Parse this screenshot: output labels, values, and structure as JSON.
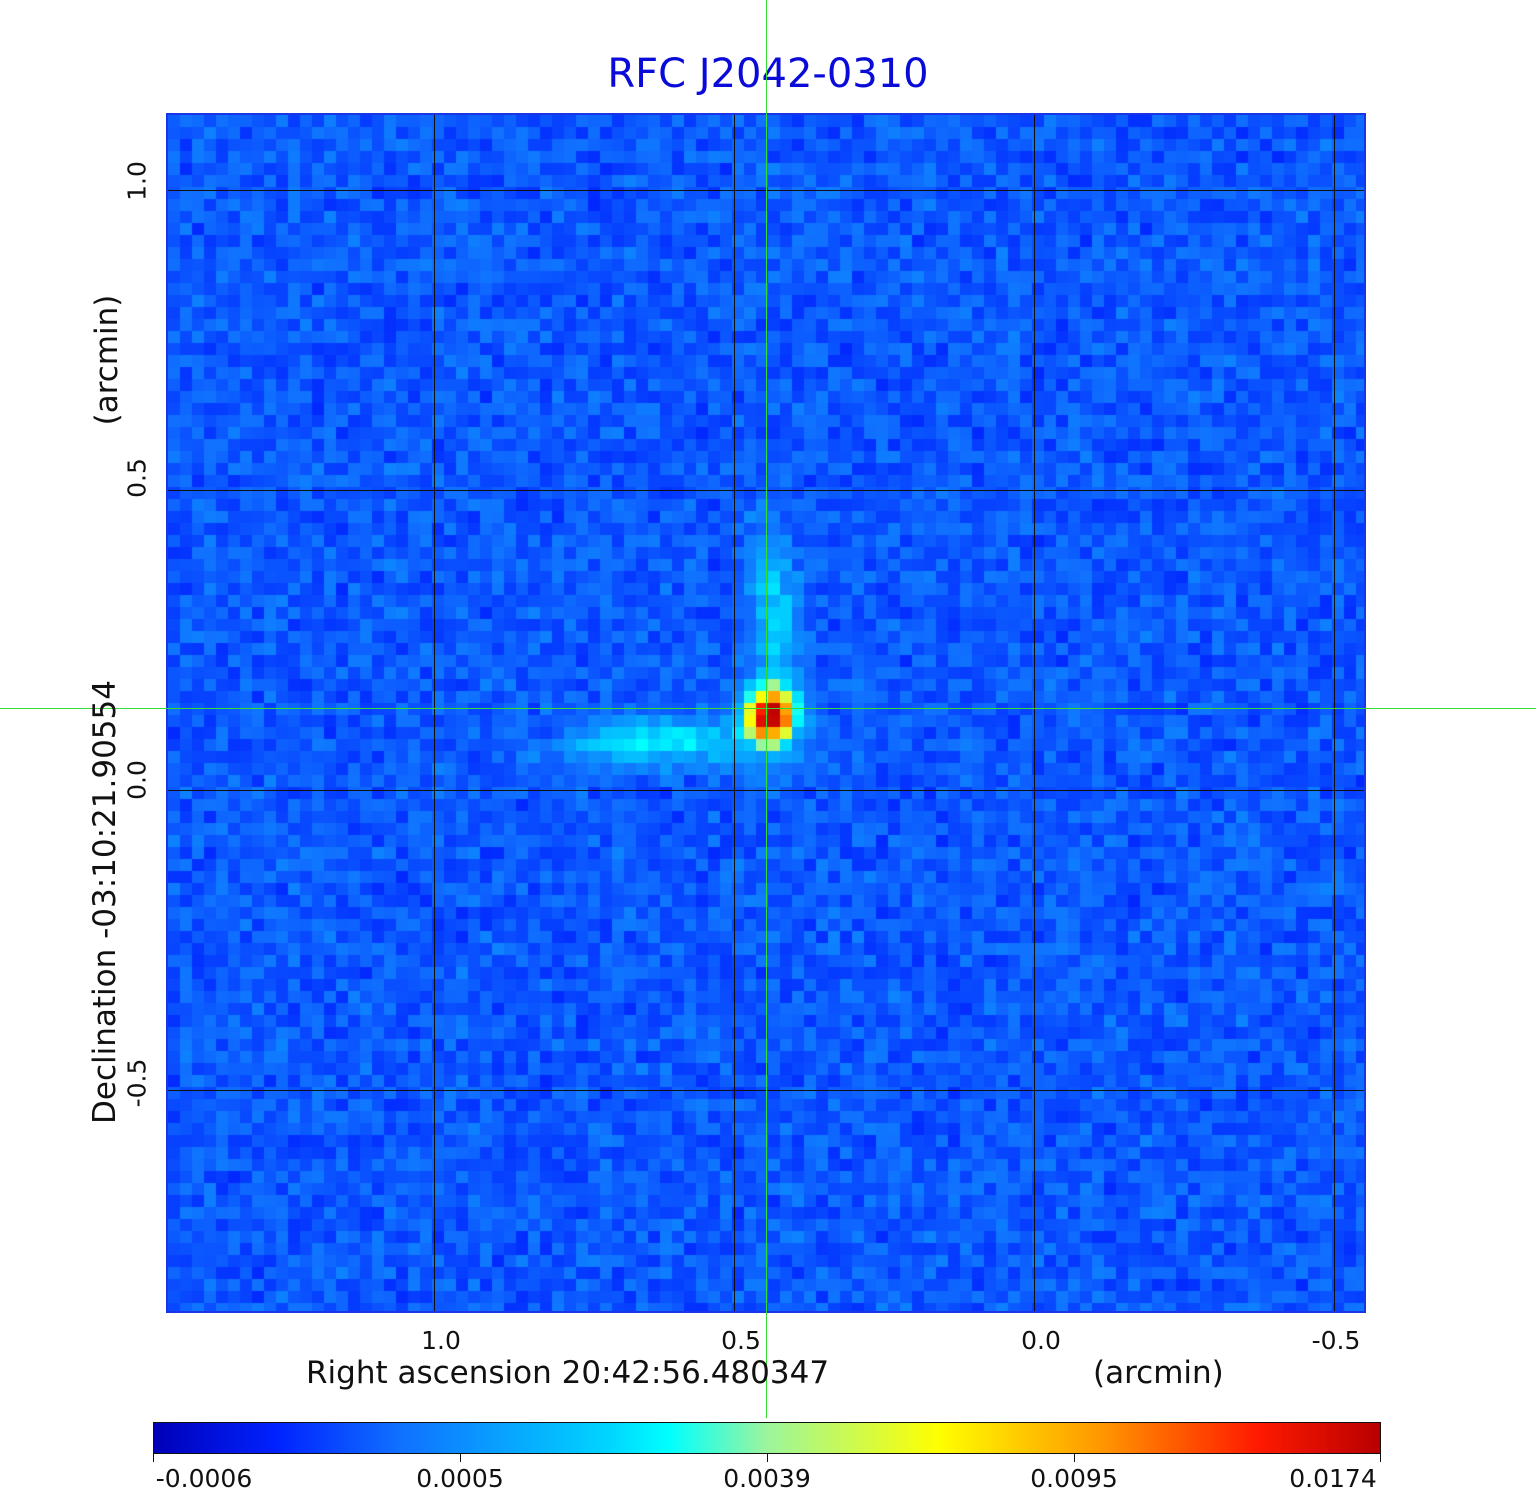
{
  "title": "RFC J2042-0310",
  "x_axis": {
    "label": "Right ascension  20:42:56.480347",
    "unit": "(arcmin)",
    "ticks": [
      "1.0",
      "0.5",
      "0.0",
      "-0.5"
    ]
  },
  "y_axis": {
    "label": "Declination  -03:10:21.90554",
    "unit": "(arcmin)",
    "ticks": [
      "1.0",
      "0.5",
      "0.0",
      "-0.5"
    ]
  },
  "colorbar": {
    "ticks": [
      "-0.0006",
      "0.0005",
      "0.0039",
      "0.0095",
      "0.0174"
    ]
  },
  "colors": {
    "title": "#0b0bd9",
    "crosshair": "#33dd33",
    "grid": "#101010"
  }
}
